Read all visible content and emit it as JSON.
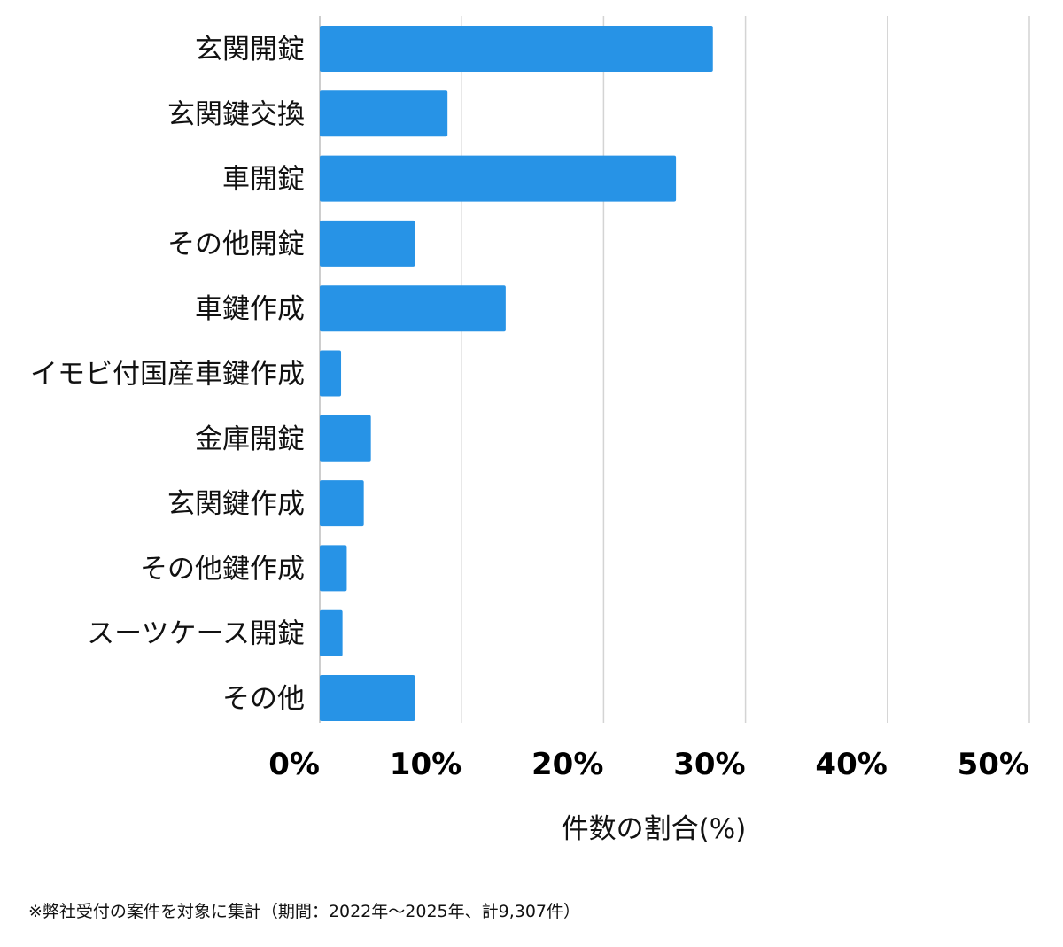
{
  "chart_data": {
    "type": "bar",
    "orientation": "horizontal",
    "categories": [
      "玄関開錠",
      "玄関鍵交換",
      "車開錠",
      "その他開錠",
      "車鍵作成",
      "イモビ付国産車鍵作成",
      "金庫開錠",
      "玄関鍵作成",
      "その他鍵作成",
      "スーツケース開錠",
      "その他"
    ],
    "values": [
      27.7,
      9.0,
      25.1,
      6.7,
      13.1,
      1.5,
      3.6,
      3.1,
      1.9,
      1.6,
      6.7
    ],
    "xlabel": "件数の割合(%)",
    "ylabel": "",
    "xlim": [
      0,
      50
    ],
    "xticks": [
      "0%",
      "10%",
      "20%",
      "30%",
      "40%",
      "50%"
    ],
    "grid": true,
    "bar_color": "#2793e6"
  },
  "footnote": "※弊社受付の案件を対象に集計（期間：2022年〜2025年、計9,307件）"
}
